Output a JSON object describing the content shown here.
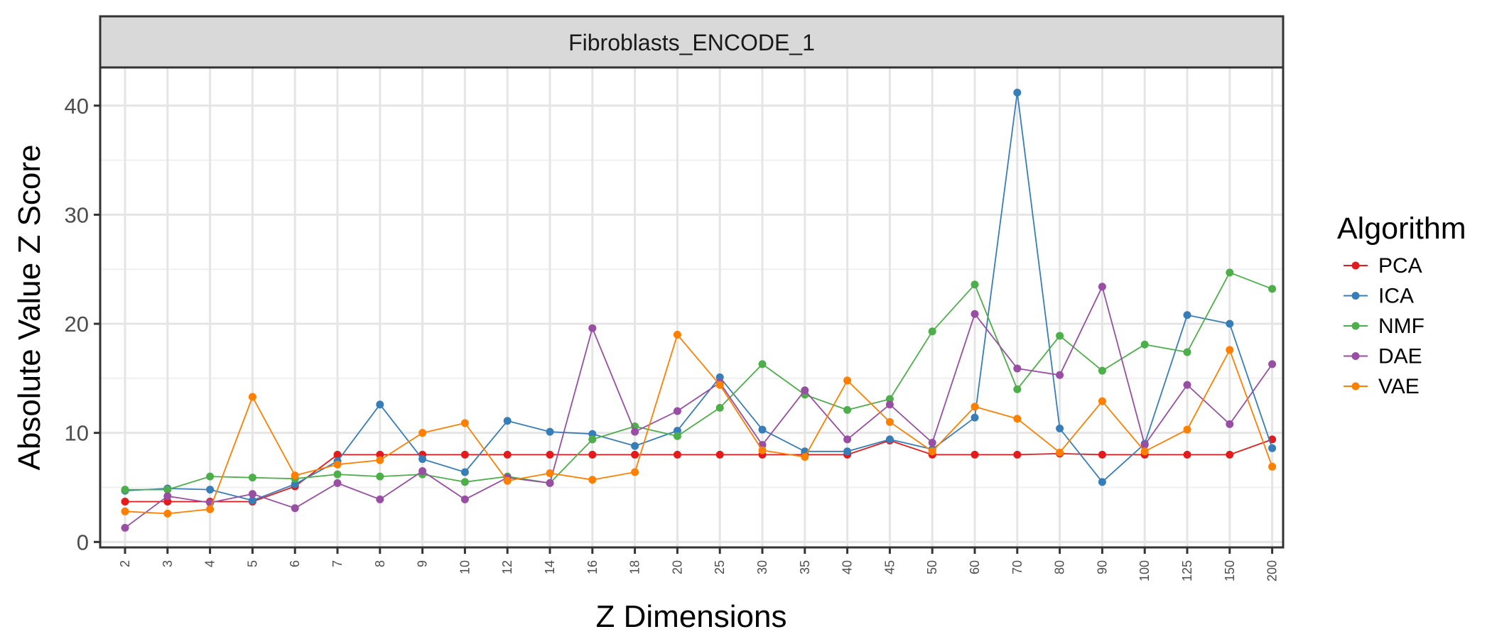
{
  "chart_data": {
    "type": "line",
    "facet_title": "Fibroblasts_ENCODE_1",
    "xlabel": "Z Dimensions",
    "ylabel": "Absolute Value Z Score",
    "categories": [
      "2",
      "3",
      "4",
      "5",
      "6",
      "7",
      "8",
      "9",
      "10",
      "12",
      "14",
      "16",
      "18",
      "20",
      "25",
      "30",
      "35",
      "40",
      "45",
      "50",
      "60",
      "70",
      "80",
      "90",
      "100",
      "125",
      "150",
      "200"
    ],
    "y_ticks": [
      0,
      10,
      20,
      30,
      40
    ],
    "ylim": [
      -0.5,
      43.5
    ],
    "grid": true,
    "legend": {
      "title": "Algorithm",
      "position": "right"
    },
    "series": [
      {
        "name": "PCA",
        "color": "#E41A1C",
        "values": [
          3.7,
          3.7,
          3.7,
          3.7,
          5.1,
          8.0,
          8.0,
          8.0,
          8.0,
          8.0,
          8.0,
          8.0,
          8.0,
          8.0,
          8.0,
          8.0,
          8.0,
          8.0,
          9.3,
          8.0,
          8.0,
          8.0,
          8.1,
          8.0,
          8.0,
          8.0,
          8.0,
          9.4
        ]
      },
      {
        "name": "ICA",
        "color": "#377EB8",
        "values": [
          4.7,
          4.9,
          4.8,
          3.8,
          5.3,
          7.4,
          12.6,
          7.6,
          6.4,
          11.1,
          10.1,
          9.9,
          8.8,
          10.2,
          15.1,
          10.3,
          8.3,
          8.3,
          9.4,
          8.5,
          11.4,
          41.2,
          10.4,
          5.5,
          9.0,
          20.8,
          20.0,
          8.6
        ]
      },
      {
        "name": "NMF",
        "color": "#4DAF4A",
        "values": [
          4.8,
          4.8,
          6.0,
          5.9,
          5.8,
          6.2,
          6.0,
          6.2,
          5.5,
          6.0,
          5.4,
          9.4,
          10.6,
          9.7,
          12.3,
          16.3,
          13.5,
          12.1,
          13.1,
          19.3,
          23.6,
          14.0,
          18.9,
          15.7,
          18.1,
          17.4,
          24.7,
          23.2
        ]
      },
      {
        "name": "DAE",
        "color": "#984EA3",
        "values": [
          1.3,
          4.2,
          3.6,
          4.4,
          3.1,
          5.4,
          3.9,
          6.5,
          3.9,
          5.9,
          5.4,
          19.6,
          10.1,
          12.0,
          14.6,
          8.9,
          13.9,
          9.4,
          12.6,
          9.1,
          20.9,
          15.9,
          15.3,
          23.4,
          8.9,
          14.4,
          10.8,
          16.3
        ]
      },
      {
        "name": "VAE",
        "color": "#FF7F00",
        "values": [
          2.8,
          2.6,
          3.0,
          13.3,
          6.1,
          7.1,
          7.5,
          10.0,
          10.9,
          5.6,
          6.3,
          5.7,
          6.4,
          19.0,
          14.4,
          8.4,
          7.8,
          14.8,
          11.0,
          8.3,
          12.4,
          11.3,
          8.2,
          12.9,
          8.3,
          10.3,
          17.6,
          6.9
        ]
      }
    ]
  }
}
